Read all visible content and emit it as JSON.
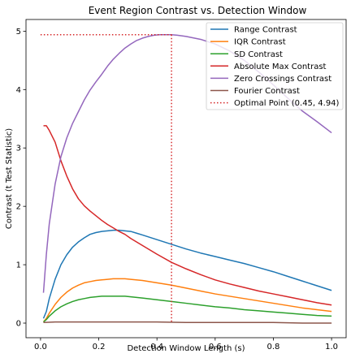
{
  "chart_data": {
    "type": "line",
    "title": "Event Region Contrast vs. Detection Window",
    "xlabel": "Detection Window Length (s)",
    "ylabel": "Contrast (t Test Statistic)",
    "xlim": [
      -0.05,
      1.05
    ],
    "ylim": [
      -0.25,
      5.2
    ],
    "xticks": [
      0.0,
      0.2,
      0.4,
      0.6,
      0.8,
      1.0
    ],
    "xtick_labels": [
      "0.0",
      "0.2",
      "0.4",
      "0.6",
      "0.8",
      "1.0"
    ],
    "yticks": [
      0,
      1,
      2,
      3,
      4,
      5
    ],
    "ytick_labels": [
      "0",
      "1",
      "2",
      "3",
      "4",
      "5"
    ],
    "grid": false,
    "legend_position": "top-right",
    "series": [
      {
        "name": "Range Contrast",
        "color": "#1f77b4",
        "style": "solid",
        "x": [
          0.01,
          0.02,
          0.03,
          0.05,
          0.07,
          0.09,
          0.11,
          0.13,
          0.15,
          0.17,
          0.19,
          0.21,
          0.23,
          0.25,
          0.27,
          0.29,
          0.31,
          0.33,
          0.35,
          0.4,
          0.45,
          0.5,
          0.55,
          0.6,
          0.65,
          0.7,
          0.75,
          0.8,
          0.85,
          0.9,
          0.95,
          1.0
        ],
        "y": [
          0.08,
          0.2,
          0.42,
          0.75,
          1.0,
          1.17,
          1.3,
          1.39,
          1.46,
          1.52,
          1.55,
          1.57,
          1.58,
          1.59,
          1.59,
          1.58,
          1.57,
          1.54,
          1.51,
          1.43,
          1.35,
          1.27,
          1.2,
          1.14,
          1.08,
          1.02,
          0.95,
          0.88,
          0.8,
          0.72,
          0.64,
          0.56
        ]
      },
      {
        "name": "IQR Contrast",
        "color": "#ff7f0e",
        "style": "solid",
        "x": [
          0.01,
          0.02,
          0.03,
          0.05,
          0.07,
          0.09,
          0.11,
          0.13,
          0.15,
          0.17,
          0.19,
          0.21,
          0.23,
          0.25,
          0.27,
          0.29,
          0.31,
          0.35,
          0.4,
          0.45,
          0.5,
          0.55,
          0.6,
          0.65,
          0.7,
          0.75,
          0.8,
          0.85,
          0.9,
          0.95,
          1.0
        ],
        "y": [
          0.02,
          0.08,
          0.17,
          0.32,
          0.44,
          0.53,
          0.6,
          0.65,
          0.69,
          0.71,
          0.73,
          0.74,
          0.75,
          0.76,
          0.76,
          0.76,
          0.75,
          0.73,
          0.69,
          0.65,
          0.6,
          0.55,
          0.5,
          0.46,
          0.42,
          0.38,
          0.34,
          0.3,
          0.26,
          0.23,
          0.2
        ]
      },
      {
        "name": "SD Contrast",
        "color": "#2ca02c",
        "style": "solid",
        "x": [
          0.01,
          0.02,
          0.03,
          0.05,
          0.07,
          0.09,
          0.11,
          0.13,
          0.15,
          0.17,
          0.19,
          0.21,
          0.23,
          0.25,
          0.27,
          0.29,
          0.31,
          0.35,
          0.4,
          0.45,
          0.5,
          0.55,
          0.6,
          0.65,
          0.7,
          0.75,
          0.8,
          0.85,
          0.9,
          0.95,
          1.0
        ],
        "y": [
          0.02,
          0.06,
          0.12,
          0.21,
          0.28,
          0.33,
          0.37,
          0.4,
          0.42,
          0.44,
          0.45,
          0.46,
          0.46,
          0.46,
          0.46,
          0.46,
          0.45,
          0.43,
          0.4,
          0.37,
          0.34,
          0.31,
          0.28,
          0.26,
          0.23,
          0.21,
          0.19,
          0.17,
          0.15,
          0.13,
          0.12
        ]
      },
      {
        "name": "Absolute Max Contrast",
        "color": "#d62728",
        "style": "solid",
        "x": [
          0.01,
          0.02,
          0.03,
          0.05,
          0.07,
          0.09,
          0.11,
          0.13,
          0.15,
          0.17,
          0.19,
          0.21,
          0.23,
          0.25,
          0.27,
          0.29,
          0.31,
          0.35,
          0.4,
          0.45,
          0.5,
          0.55,
          0.6,
          0.65,
          0.7,
          0.75,
          0.8,
          0.85,
          0.9,
          0.95,
          1.0
        ],
        "y": [
          3.38,
          3.38,
          3.3,
          3.1,
          2.78,
          2.52,
          2.3,
          2.13,
          2.01,
          1.92,
          1.84,
          1.76,
          1.69,
          1.63,
          1.57,
          1.52,
          1.45,
          1.33,
          1.18,
          1.04,
          0.93,
          0.83,
          0.74,
          0.67,
          0.61,
          0.55,
          0.5,
          0.45,
          0.4,
          0.35,
          0.31
        ]
      },
      {
        "name": "Zero Crossings Contrast",
        "color": "#9467bd",
        "style": "solid",
        "x": [
          0.01,
          0.02,
          0.03,
          0.05,
          0.07,
          0.09,
          0.11,
          0.13,
          0.15,
          0.17,
          0.19,
          0.21,
          0.23,
          0.25,
          0.27,
          0.29,
          0.31,
          0.33,
          0.35,
          0.37,
          0.39,
          0.41,
          0.43,
          0.45,
          0.47,
          0.5,
          0.55,
          0.6,
          0.65,
          0.7,
          0.75,
          0.8,
          0.85,
          0.9,
          0.95,
          1.0
        ],
        "y": [
          0.52,
          1.18,
          1.7,
          2.38,
          2.85,
          3.17,
          3.42,
          3.62,
          3.82,
          3.99,
          4.13,
          4.26,
          4.4,
          4.52,
          4.62,
          4.71,
          4.78,
          4.84,
          4.88,
          4.91,
          4.93,
          4.94,
          4.94,
          4.94,
          4.93,
          4.91,
          4.86,
          4.78,
          4.66,
          4.5,
          4.3,
          4.08,
          3.85,
          3.63,
          3.45,
          3.26
        ]
      },
      {
        "name": "Fourier Contrast",
        "color": "#8c564b",
        "style": "solid",
        "x": [
          0.01,
          0.05,
          0.1,
          0.15,
          0.2,
          0.25,
          0.3,
          0.35,
          0.4,
          0.5,
          0.6,
          0.7,
          0.8,
          0.9,
          1.0
        ],
        "y": [
          0.01,
          0.02,
          0.02,
          0.02,
          0.02,
          0.02,
          0.02,
          0.02,
          0.02,
          0.01,
          0.01,
          0.01,
          0.01,
          0.0,
          0.0
        ]
      }
    ],
    "optimal_point": {
      "name": "Optimal Point (0.45, 4.94)",
      "color": "#d62728",
      "style": "dotted",
      "x": 0.45,
      "y": 4.94
    }
  }
}
